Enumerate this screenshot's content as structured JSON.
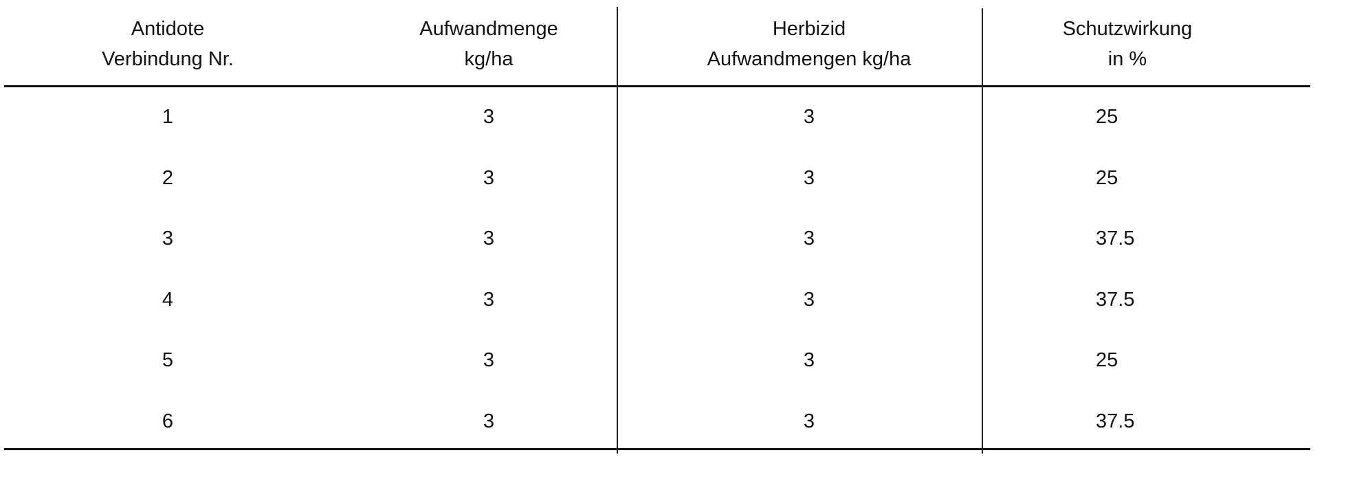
{
  "table": {
    "headers": [
      [
        "Antidote",
        "Verbindung Nr."
      ],
      [
        "Aufwandmenge",
        "kg/ha"
      ],
      [
        "Herbizid",
        "Aufwandmengen kg/ha"
      ],
      [
        "Schutzwirkung",
        "in %"
      ]
    ],
    "rows": [
      [
        "1",
        "3",
        "3",
        "25"
      ],
      [
        "2",
        "3",
        "3",
        "25"
      ],
      [
        "3",
        "3",
        "3",
        "37.5"
      ],
      [
        "4",
        "3",
        "3",
        "37.5"
      ],
      [
        "5",
        "3",
        "3",
        "25"
      ],
      [
        "6",
        "3",
        "3",
        "37.5"
      ]
    ]
  }
}
